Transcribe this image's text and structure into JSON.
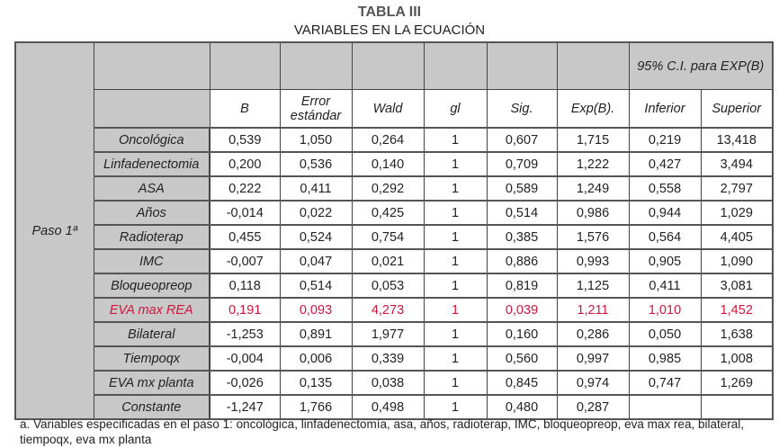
{
  "title": "TABLA III",
  "subtitle": "VARIABLES EN LA ECUACIÓN",
  "header": {
    "ci_group": "95% C.I. para EXP(B)",
    "columns": [
      "B",
      "Error estándar",
      "Wald",
      "gl",
      "Sig.",
      "Exp(B).",
      "Inferior",
      "Superior"
    ]
  },
  "step_label": "Paso 1ª",
  "highlight_color": "#d4143c",
  "rows": [
    {
      "name": "Oncológica",
      "values": [
        "0,539",
        "1,050",
        "0,264",
        "1",
        "0,607",
        "1,715",
        "0,219",
        "13,418"
      ]
    },
    {
      "name": "Linfadenectomia",
      "values": [
        "0,200",
        "0,536",
        "0,140",
        "1",
        "0,709",
        "1,222",
        "0,427",
        "3,494"
      ]
    },
    {
      "name": "ASA",
      "values": [
        "0,222",
        "0,411",
        "0,292",
        "1",
        "0,589",
        "1,249",
        "0,558",
        "2,797"
      ]
    },
    {
      "name": "Años",
      "values": [
        "-0,014",
        "0,022",
        "0,425",
        "1",
        "0,514",
        "0,986",
        "0,944",
        "1,029"
      ]
    },
    {
      "name": "Radioterap",
      "values": [
        "0,455",
        "0,524",
        "0,754",
        "1",
        "0,385",
        "1,576",
        "0,564",
        "4,405"
      ]
    },
    {
      "name": "IMC",
      "values": [
        "-0,007",
        "0,047",
        "0,021",
        "1",
        "0,886",
        "0,993",
        "0,905",
        "1,090"
      ]
    },
    {
      "name": "Bloqueopreop",
      "values": [
        "0,118",
        "0,514",
        "0,053",
        "1",
        "0,819",
        "1,125",
        "0,411",
        "3,081"
      ]
    },
    {
      "name": "EVA max REA",
      "highlight": true,
      "values": [
        "0,191",
        "0,093",
        "4,273",
        "1",
        "0,039",
        "1,211",
        "1,010",
        "1,452"
      ]
    },
    {
      "name": "Bilateral",
      "values": [
        "-1,253",
        "0,891",
        "1,977",
        "1",
        "0,160",
        "0,286",
        "0,050",
        "1,638"
      ]
    },
    {
      "name": "Tiempoqx",
      "values": [
        "-0,004",
        "0,006",
        "0,339",
        "1",
        "0,560",
        "0,997",
        "0,985",
        "1,008"
      ]
    },
    {
      "name": "EVA mx planta",
      "values": [
        "-0,026",
        "0,135",
        "0,038",
        "1",
        "0,845",
        "0,974",
        "0,747",
        "1,269"
      ]
    },
    {
      "name": "Constante",
      "values": [
        "-1,247",
        "1,766",
        "0,498",
        "1",
        "0,480",
        "0,287",
        "",
        ""
      ]
    }
  ],
  "footnote": "a. Variables especificadas en el paso 1: oncológica, linfadenectomía, asa, años, radioterap, IMC, bloqueopreop, eva max rea, bilateral, tiempoqx, eva mx planta"
}
